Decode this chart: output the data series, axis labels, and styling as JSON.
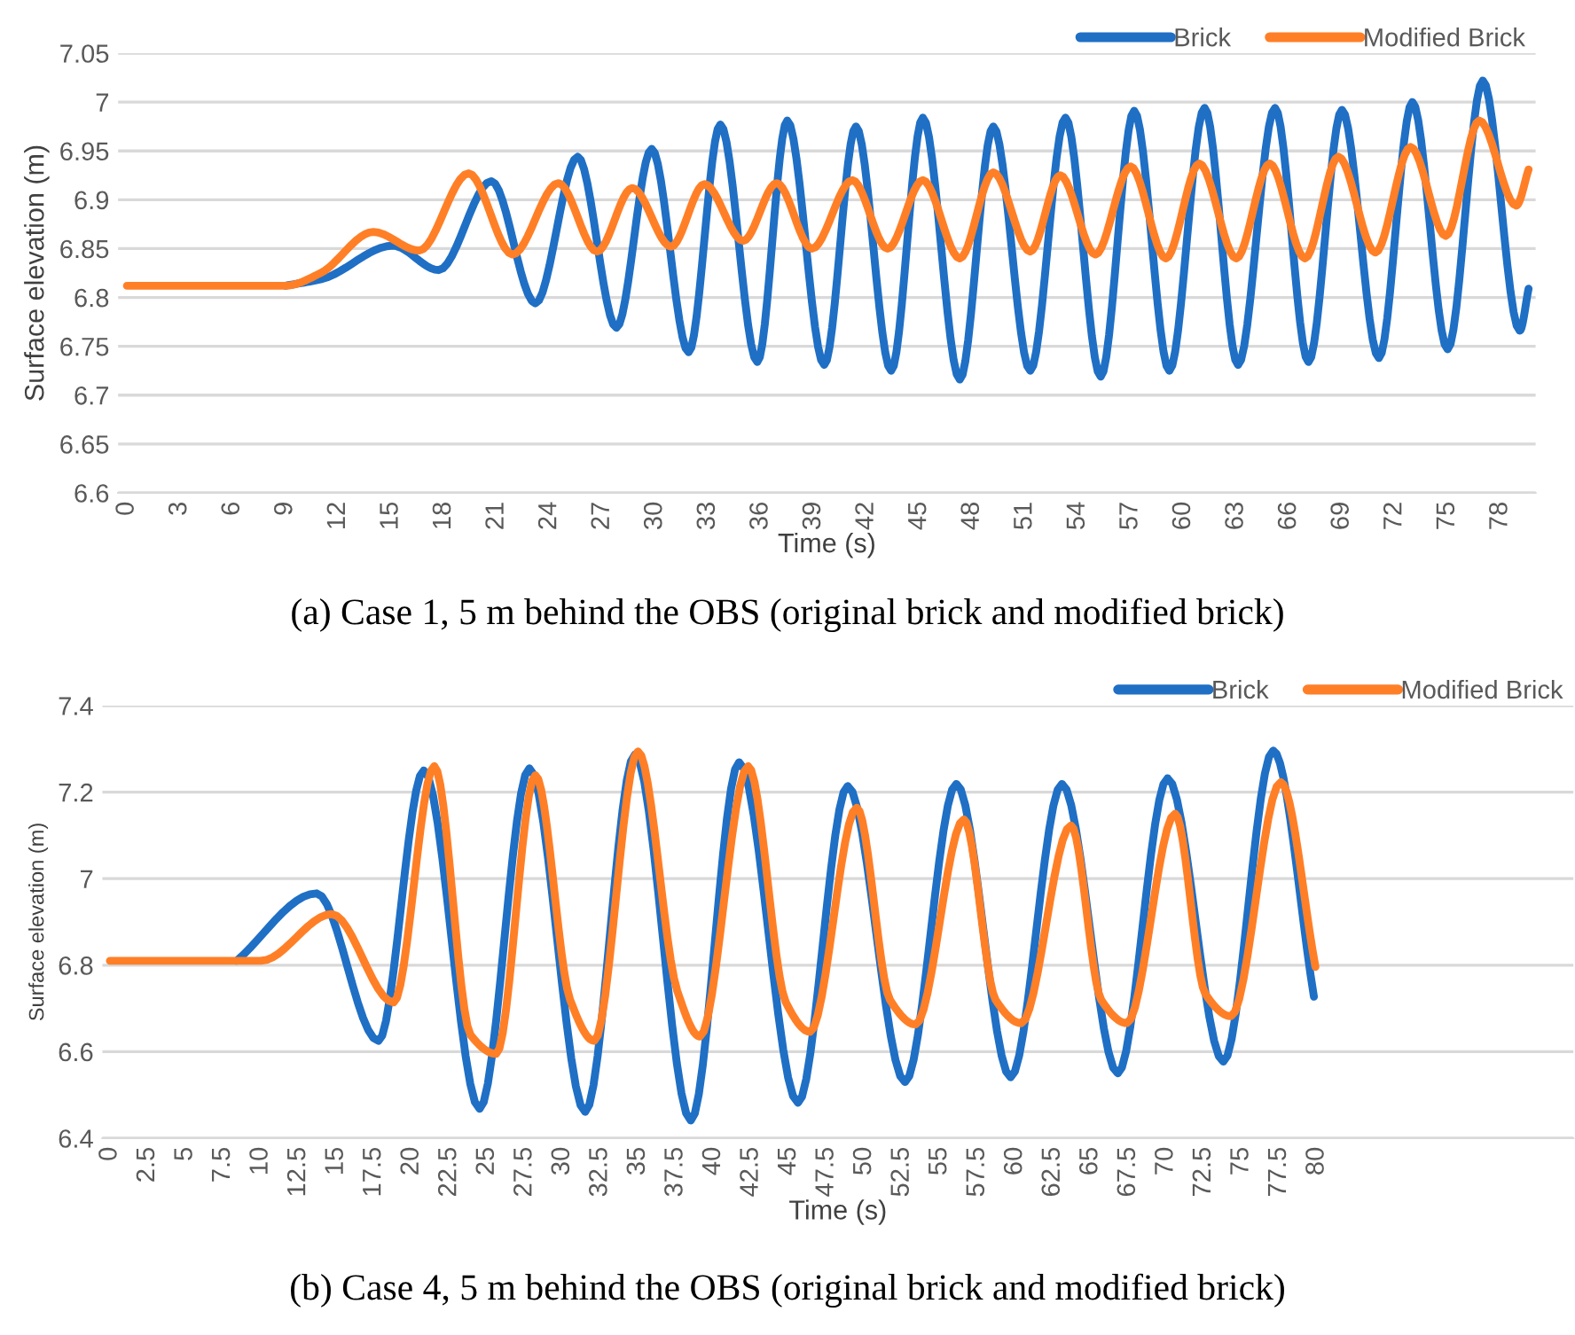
{
  "chart_data": [
    {
      "type": "line",
      "xlabel": "Time (s)",
      "ylabel": "Surface elevation (m)",
      "xlim": [
        -0.5,
        80
      ],
      "xticks": [
        0,
        3,
        6,
        9,
        12,
        15,
        18,
        21,
        24,
        27,
        30,
        33,
        36,
        39,
        42,
        45,
        48,
        51,
        54,
        57,
        60,
        63,
        66,
        69,
        72,
        75,
        78
      ],
      "ylim": [
        6.6,
        7.05
      ],
      "yticks": [
        6.6,
        6.65,
        6.7,
        6.75,
        6.8,
        6.85,
        6.9,
        6.95,
        7,
        7.05
      ],
      "grid": "y",
      "legend": "top right",
      "line_style": "solid",
      "marker": "none",
      "series": [
        {
          "name": "Brick",
          "color": "#1f6fc5",
          "x": [
            9,
            11.1,
            15.1,
            17.7,
            20.7,
            23.2,
            25.6,
            27.8,
            29.8,
            31.9,
            33.7,
            35.8,
            37.5,
            39.6,
            41.4,
            43.4,
            45.2,
            47.3,
            49.2,
            51.3,
            53.3,
            55.3,
            57.2,
            59.2,
            61.2,
            63.1,
            65.2,
            67.1,
            69.0,
            71.1,
            73.0,
            75.0,
            77.0,
            79.1,
            79.6
          ],
          "values": [
            6.812,
            6.819,
            6.853,
            6.828,
            6.919,
            6.794,
            6.944,
            6.769,
            6.952,
            6.744,
            6.977,
            6.734,
            6.981,
            6.731,
            6.975,
            6.725,
            6.984,
            6.716,
            6.975,
            6.725,
            6.984,
            6.719,
            6.991,
            6.725,
            6.994,
            6.731,
            6.994,
            6.734,
            6.992,
            6.738,
            7.0,
            6.747,
            7.022,
            6.766,
            6.809
          ]
        },
        {
          "name": "Modified Brick",
          "color": "#ff7f27",
          "x": [
            0,
            3,
            6,
            9,
            11,
            14,
            16.6,
            19.4,
            21.9,
            24.5,
            26.7,
            28.7,
            30.9,
            32.8,
            35,
            36.9,
            38.9,
            41.2,
            43.2,
            45.2,
            47.3,
            49.2,
            51.3,
            53,
            55,
            57,
            59,
            60.9,
            63,
            64.9,
            66.9,
            68.8,
            70.9,
            72.9,
            74.9,
            76.8,
            78.9,
            79.6
          ],
          "values": [
            6.812,
            6.812,
            6.812,
            6.812,
            6.825,
            6.867,
            6.848,
            6.927,
            6.844,
            6.917,
            6.847,
            6.912,
            6.852,
            6.916,
            6.858,
            6.917,
            6.85,
            6.92,
            6.85,
            6.92,
            6.84,
            6.928,
            6.847,
            6.925,
            6.844,
            6.934,
            6.84,
            6.937,
            6.84,
            6.937,
            6.84,
            6.944,
            6.846,
            6.954,
            6.863,
            6.981,
            6.894,
            6.931
          ]
        }
      ],
      "annotations": [
        "(a) Case 1, 5 m behind the OBS (original brick and modified brick)"
      ]
    },
    {
      "type": "line",
      "xlabel": "Time (s)",
      "ylabel": "Surface elevation (m)",
      "xlim": [
        -0.5,
        97
      ],
      "xticks": [
        0,
        2.5,
        5,
        7.5,
        10,
        12.5,
        15,
        17.5,
        20,
        22.5,
        25,
        27.5,
        30,
        32.5,
        35,
        37.5,
        40,
        42.5,
        45,
        47.5,
        50,
        52.5,
        55,
        57.5,
        60,
        62.5,
        65,
        67.5,
        70,
        72.5,
        75,
        77.5,
        80
      ],
      "ylim": [
        6.4,
        7.4
      ],
      "yticks": [
        6.4,
        6.6,
        6.8,
        7,
        7.2,
        7.4
      ],
      "grid": "y",
      "legend": "top right",
      "line_style": "solid",
      "marker": "none",
      "series": [
        {
          "name": "Brick",
          "color": "#1f6fc5",
          "x": [
            8.4,
            13.7,
            17.8,
            20.8,
            24.5,
            27.8,
            31.5,
            34.8,
            38.5,
            41.7,
            45.6,
            48.9,
            52.7,
            56.1,
            59.7,
            63.1,
            66.8,
            70.1,
            73.8,
            77.1,
            79.8
          ],
          "values": [
            6.81,
            6.966,
            6.625,
            7.25,
            6.468,
            7.255,
            6.461,
            7.287,
            6.441,
            7.269,
            6.482,
            7.214,
            6.53,
            7.219,
            6.541,
            7.219,
            6.55,
            7.232,
            6.577,
            7.296,
            6.727
          ]
        },
        {
          "name": "Modified Brick",
          "color": "#ff7f27",
          "x": [
            0,
            5,
            10,
            14.7,
            18.8,
            21.5,
            23.9,
            25.6,
            28.2,
            30.5,
            32.1,
            35,
            37.6,
            39.1,
            42.3,
            44.8,
            46.4,
            49.5,
            51.7,
            53.4,
            56.6,
            58.7,
            60.4,
            63.7,
            65.7,
            67.4,
            70.6,
            72.6,
            74.3,
            77.6,
            79.9
          ],
          "values": [
            6.81,
            6.81,
            6.81,
            6.918,
            6.714,
            7.26,
            6.639,
            6.595,
            7.239,
            6.72,
            6.625,
            7.294,
            6.741,
            6.635,
            7.26,
            6.714,
            6.646,
            7.164,
            6.72,
            6.663,
            7.137,
            6.72,
            6.666,
            7.123,
            6.72,
            6.666,
            7.15,
            6.734,
            6.682,
            7.223,
            6.796
          ]
        }
      ],
      "annotations": [
        "(b) Case 4, 5 m behind the OBS (original brick and modified brick)"
      ]
    }
  ]
}
